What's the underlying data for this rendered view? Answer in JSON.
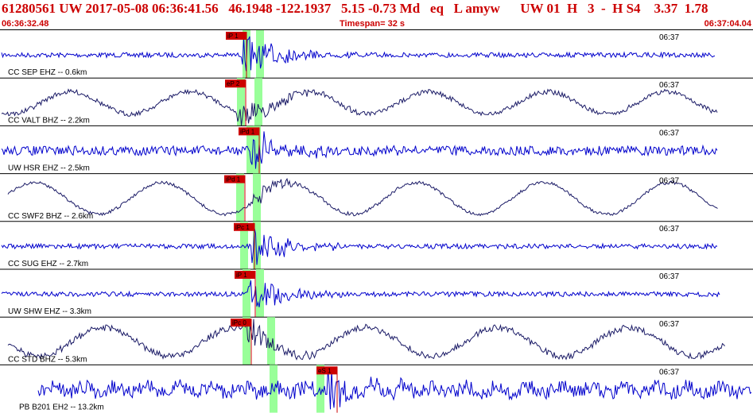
{
  "header": {
    "title": "61280561 UW 2017-05-08 06:36:41.56   46.1948 -122.1937   5.15 -0.73 Md   eq   L amyw      UW 01  H   3  -  H S4    3.37  1.78",
    "start_time": "06:36:32.48",
    "timespan": "Timespan=  32 s",
    "end_time": "06:37:04.04"
  },
  "colors": {
    "accent": "#cc0000",
    "trace_blue": "#0000cc",
    "trace_navy": "#1a1a66",
    "pick_window": "#99ff99",
    "pick_line": "#cc0000"
  },
  "traces": [
    {
      "label": "CC SEP EHZ -- 0.6km",
      "time_label": "06:37",
      "pick": "iP 1",
      "color": "blue"
    },
    {
      "label": "CC VALT BHZ -- 2.2km",
      "time_label": "06:37",
      "pick": "eP 2",
      "color": "navy"
    },
    {
      "label": "UW HSR EHZ -- 2.5km",
      "time_label": "06:37",
      "pick": "iPd 1",
      "color": "blue"
    },
    {
      "label": "CC SWF2 BHZ -- 2.6km",
      "time_label": "06:37",
      "pick": "iPd 1",
      "color": "navy"
    },
    {
      "label": "CC SUG EHZ -- 2.7km",
      "time_label": "06:37",
      "pick": "iPc 1",
      "color": "blue"
    },
    {
      "label": "UW SHW EHZ -- 3.3km",
      "time_label": "06:37",
      "pick": "iP 1",
      "color": "blue"
    },
    {
      "label": "CC STD BHZ -- 5.3km",
      "time_label": "06:37",
      "pick": "iPc 0",
      "color": "navy"
    },
    {
      "label": "PB B201 EH2 -- 13.2km",
      "time_label": "06:37",
      "pick": "eS 1",
      "color": "blue"
    }
  ]
}
